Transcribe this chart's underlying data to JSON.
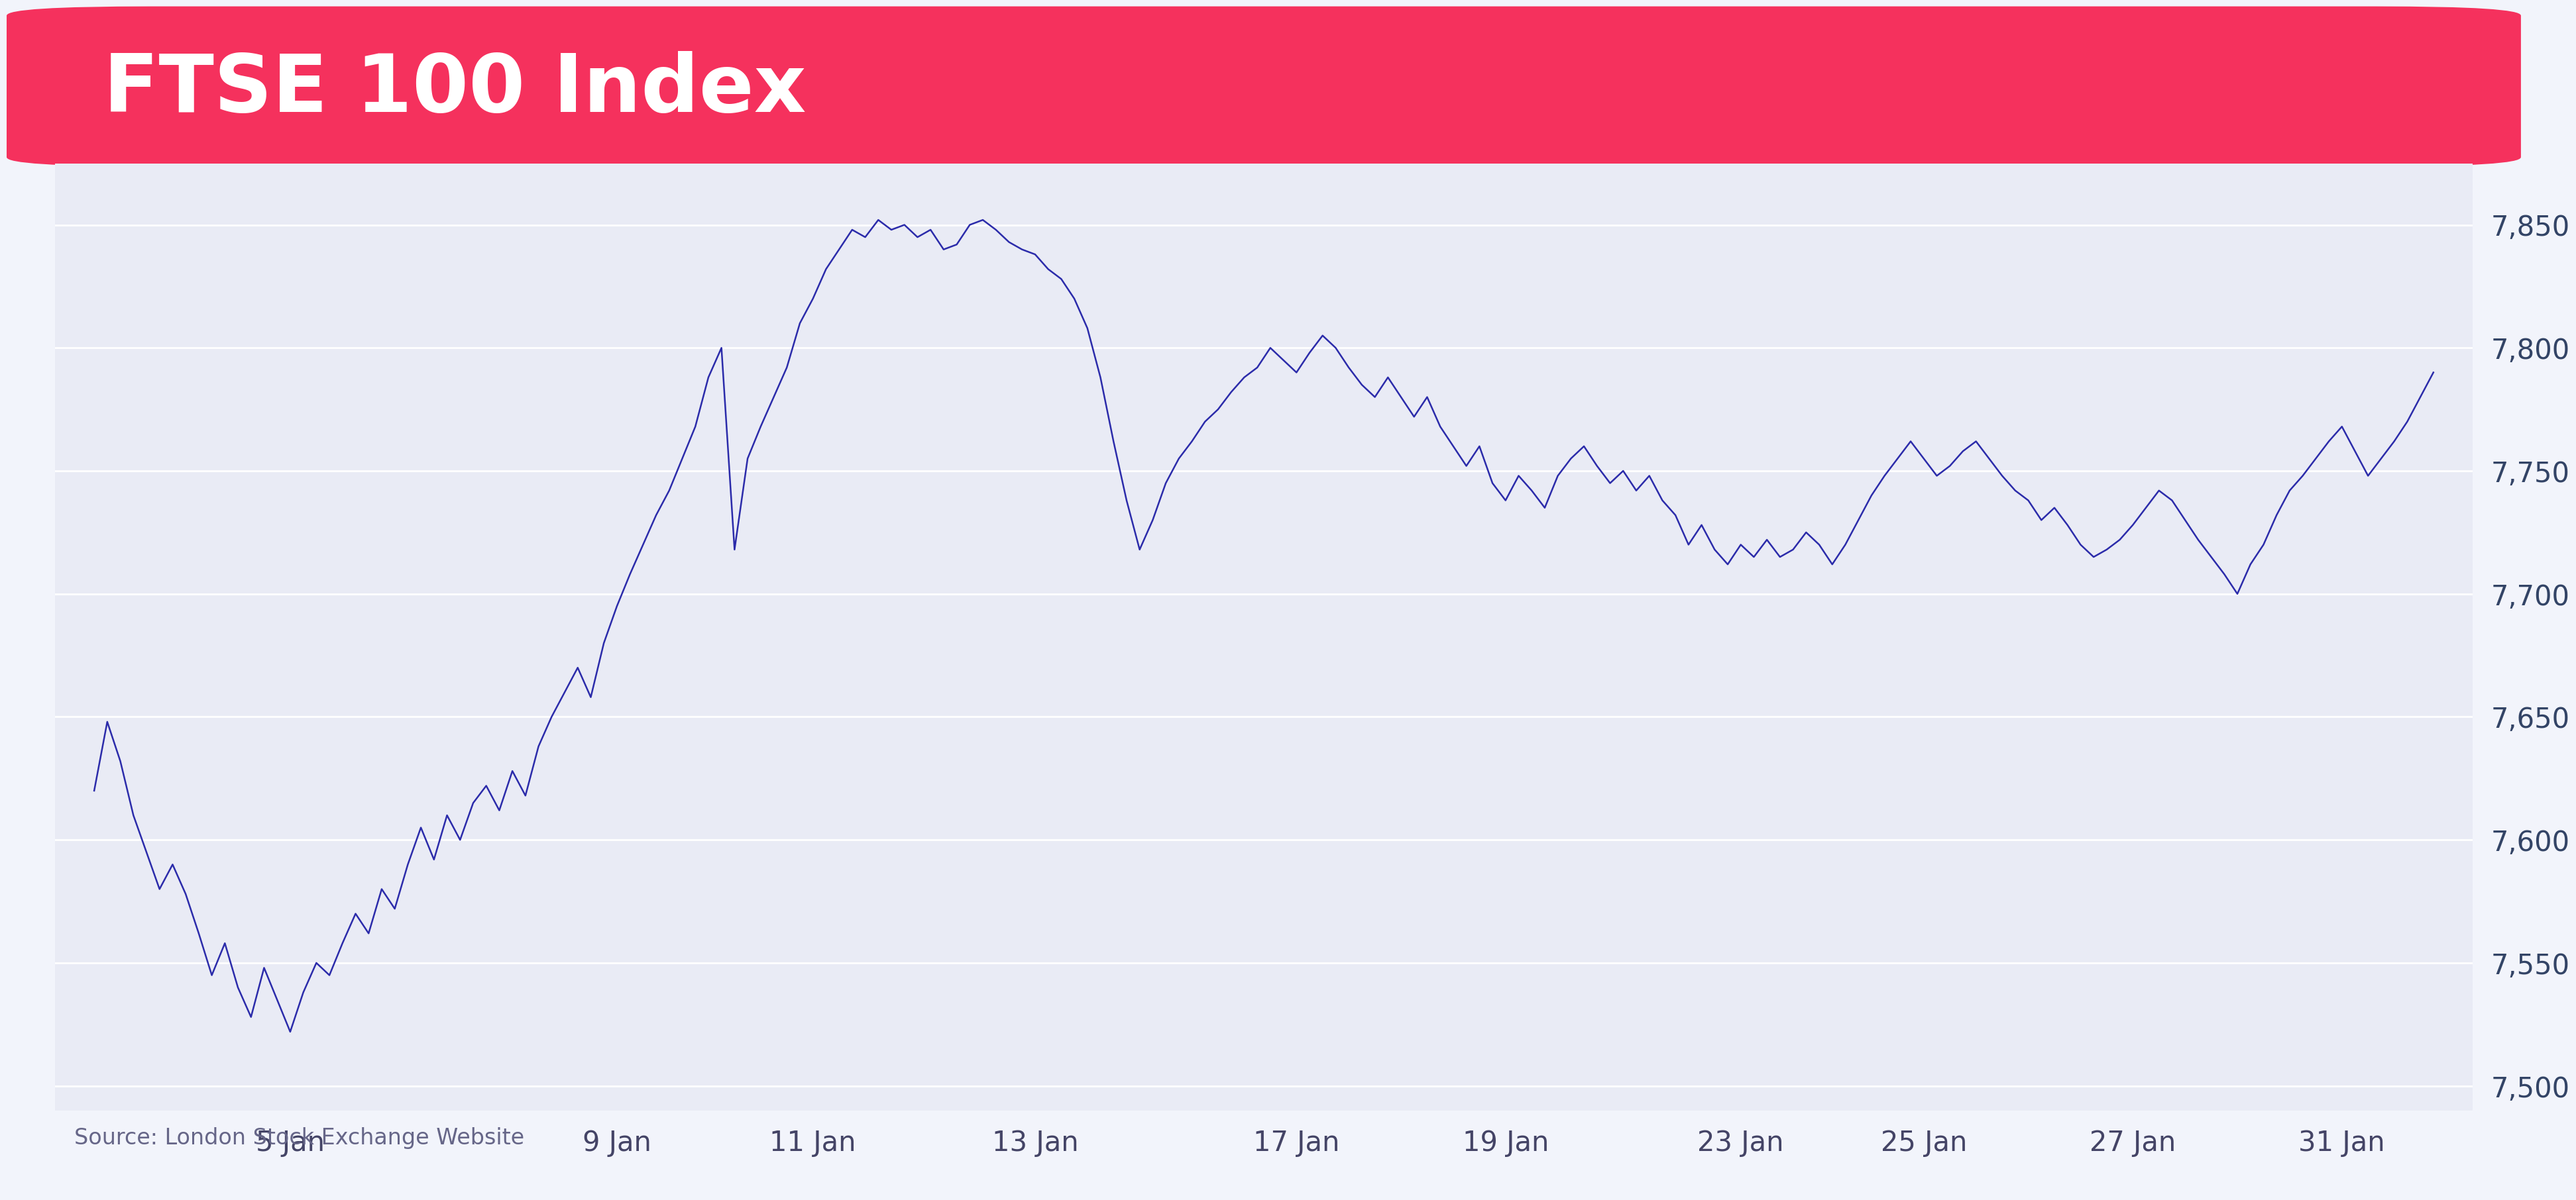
{
  "title": "FTSE 100 Index",
  "source": "Source: London Stock Exchange Website",
  "title_bg_color": "#F5315D",
  "chart_bg_color": "#E9EBF5",
  "outer_bg_color": "#F2F4FB",
  "line_color": "#2B2BAA",
  "grid_color": "#FFFFFF",
  "title_text_color": "#FFFFFF",
  "source_text_color": "#666688",
  "ytick_color": "#334466",
  "xtick_color": "#444466",
  "ylim": [
    7490,
    7875
  ],
  "yticks": [
    7500,
    7550,
    7600,
    7650,
    7700,
    7750,
    7800,
    7850
  ],
  "xtick_labels": [
    "5 Jan",
    "9 Jan",
    "11 Jan",
    "13 Jan",
    "17 Jan",
    "19 Jan",
    "23 Jan",
    "25 Jan",
    "27 Jan",
    "31 Jan"
  ],
  "line_width": 1.8,
  "values": [
    7620,
    7648,
    7632,
    7610,
    7595,
    7580,
    7590,
    7578,
    7562,
    7545,
    7558,
    7540,
    7528,
    7548,
    7535,
    7522,
    7538,
    7550,
    7545,
    7558,
    7570,
    7562,
    7580,
    7572,
    7590,
    7605,
    7592,
    7610,
    7600,
    7615,
    7622,
    7612,
    7628,
    7618,
    7638,
    7650,
    7660,
    7670,
    7658,
    7680,
    7695,
    7708,
    7720,
    7732,
    7742,
    7755,
    7768,
    7788,
    7800,
    7718,
    7755,
    7768,
    7780,
    7792,
    7810,
    7820,
    7832,
    7840,
    7848,
    7845,
    7852,
    7848,
    7850,
    7845,
    7848,
    7840,
    7842,
    7850,
    7852,
    7848,
    7843,
    7840,
    7838,
    7832,
    7828,
    7820,
    7808,
    7788,
    7762,
    7738,
    7718,
    7730,
    7745,
    7755,
    7762,
    7770,
    7775,
    7782,
    7788,
    7792,
    7800,
    7795,
    7790,
    7798,
    7805,
    7800,
    7792,
    7785,
    7780,
    7788,
    7780,
    7772,
    7780,
    7768,
    7760,
    7752,
    7760,
    7745,
    7738,
    7748,
    7742,
    7735,
    7748,
    7755,
    7760,
    7752,
    7745,
    7750,
    7742,
    7748,
    7738,
    7732,
    7720,
    7728,
    7718,
    7712,
    7720,
    7715,
    7722,
    7715,
    7718,
    7725,
    7720,
    7712,
    7720,
    7730,
    7740,
    7748,
    7755,
    7762,
    7755,
    7748,
    7752,
    7758,
    7762,
    7755,
    7748,
    7742,
    7738,
    7730,
    7735,
    7728,
    7720,
    7715,
    7718,
    7722,
    7728,
    7735,
    7742,
    7738,
    7730,
    7722,
    7715,
    7708,
    7700,
    7712,
    7720,
    7732,
    7742,
    7748,
    7755,
    7762,
    7768,
    7758,
    7748,
    7755,
    7762,
    7770,
    7780,
    7790
  ],
  "xtick_positions": [
    15,
    40,
    55,
    72,
    92,
    108,
    126,
    140,
    156,
    172
  ]
}
